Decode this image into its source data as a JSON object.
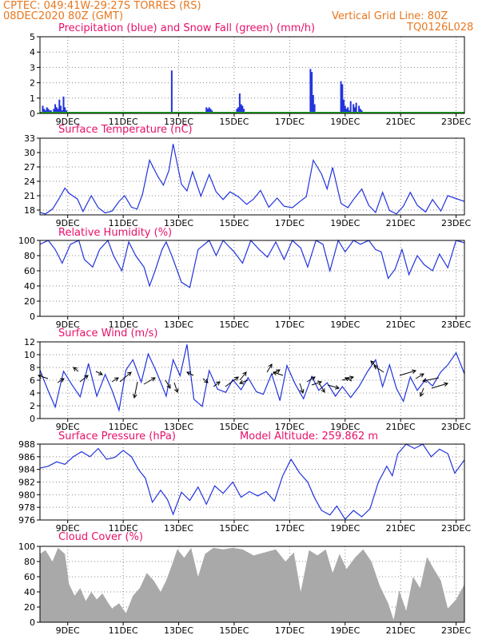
{
  "header": {
    "left_line1": "CPTEC:   049:41W-29:27S   TORRES (RS)",
    "left_line2": "08DEC2020 80Z (GMT)",
    "right_line1": "Vertical Grid Line: 80Z",
    "right_line2": "TQ0126L028"
  },
  "colors": {
    "header": "#e8771f",
    "title": "#e8106a",
    "line": "#2233dd",
    "snow": "#22aa22",
    "cloud": "#a9a9a9",
    "arrow": "#000000"
  },
  "x_ticks": [
    "9DEC",
    "11DEC",
    "13DEC",
    "15DEC",
    "17DEC",
    "19DEC",
    "21DEC",
    "23DEC"
  ],
  "chart_data": [
    {
      "type": "bar",
      "title": "Precipitation (blue) and Snow Fall (green) (mm/h)",
      "x_range": [
        8.0,
        23.3
      ],
      "ylim": [
        0,
        5
      ],
      "yticks": [
        0,
        1,
        2,
        3,
        4,
        5
      ],
      "series": [
        {
          "name": "Precipitation",
          "x": [
            8.1,
            8.15,
            8.2,
            8.25,
            8.3,
            8.35,
            8.4,
            8.5,
            8.55,
            8.6,
            8.65,
            8.7,
            8.75,
            8.8,
            8.85,
            8.9,
            8.95,
            9.0,
            12.75,
            14.0,
            14.05,
            14.1,
            14.15,
            14.2,
            14.3,
            15.1,
            15.15,
            15.2,
            15.25,
            15.3,
            15.35,
            17.75,
            17.8,
            17.85,
            17.9,
            18.85,
            18.9,
            18.95,
            19.0,
            19.05,
            19.1,
            19.15,
            19.2,
            19.3,
            19.35,
            19.4,
            19.5,
            19.55,
            19.6,
            19.7
          ],
          "values": [
            0.5,
            0.3,
            0.2,
            0.4,
            0.3,
            0.2,
            0.2,
            0.3,
            0.6,
            0.4,
            0.3,
            0.9,
            0.5,
            0.2,
            1.1,
            0.4,
            0.2,
            0.1,
            2.8,
            0.4,
            0.3,
            0.4,
            0.3,
            0.2,
            0.1,
            0.3,
            0.4,
            1.3,
            0.6,
            0.5,
            0.3,
            2.9,
            2.7,
            1.2,
            0.6,
            2.1,
            1.9,
            0.9,
            0.5,
            0.3,
            0.4,
            0.2,
            0.8,
            0.6,
            0.4,
            0.7,
            0.5,
            0.3,
            0.2,
            0.1
          ]
        },
        {
          "name": "Snow Fall",
          "x": [
            8.0,
            23.3
          ],
          "values": [
            0.05,
            0.05
          ]
        }
      ]
    },
    {
      "type": "line",
      "title": "Surface Temperature (nC)",
      "x_range": [
        8.0,
        23.3
      ],
      "ylim": [
        17,
        33
      ],
      "yticks": [
        18,
        21,
        24,
        27,
        30,
        33
      ],
      "series": [
        {
          "name": "Temperature",
          "x": [
            8.0,
            8.2,
            8.45,
            8.7,
            8.9,
            9.05,
            9.35,
            9.55,
            9.85,
            10.1,
            10.35,
            10.6,
            10.85,
            11.05,
            11.3,
            11.5,
            11.7,
            11.95,
            12.25,
            12.45,
            12.65,
            12.8,
            13.1,
            13.3,
            13.5,
            13.8,
            14.1,
            14.35,
            14.6,
            14.85,
            15.15,
            15.45,
            15.7,
            15.95,
            16.25,
            16.55,
            16.8,
            17.1,
            17.35,
            17.6,
            17.85,
            18.15,
            18.35,
            18.55,
            18.85,
            19.1,
            19.3,
            19.6,
            19.85,
            20.1,
            20.35,
            20.6,
            20.85,
            21.1,
            21.35,
            21.6,
            21.9,
            22.15,
            22.45,
            22.7,
            22.95,
            23.3
          ],
          "values": [
            17.5,
            17.2,
            18.2,
            20.5,
            22.6,
            21.5,
            20.3,
            17.7,
            21.0,
            18.5,
            17.4,
            17.8,
            19.8,
            21.0,
            18.6,
            18.2,
            21.4,
            28.4,
            25.0,
            23.2,
            26.3,
            31.8,
            23.4,
            22.0,
            26.0,
            20.9,
            25.4,
            21.8,
            20.2,
            21.8,
            20.8,
            19.2,
            20.3,
            22.1,
            18.6,
            20.5,
            18.8,
            18.5,
            19.7,
            20.8,
            28.4,
            25.5,
            22.4,
            26.9,
            19.4,
            18.5,
            20.2,
            22.4,
            19.0,
            17.5,
            21.7,
            17.9,
            17.2,
            18.8,
            21.7,
            19.0,
            17.6,
            20.2,
            17.8,
            21.0,
            20.5,
            19.8
          ]
        }
      ]
    },
    {
      "type": "line",
      "title": "Relative Humidity (%)",
      "x_range": [
        8.0,
        23.3
      ],
      "ylim": [
        0,
        100
      ],
      "yticks": [
        0,
        20,
        40,
        60,
        80,
        100
      ],
      "series": [
        {
          "name": "Relative Humidity",
          "x": [
            8.0,
            8.3,
            8.55,
            8.8,
            9.1,
            9.4,
            9.6,
            9.9,
            10.15,
            10.45,
            10.65,
            10.95,
            11.2,
            11.45,
            11.75,
            11.95,
            12.15,
            12.4,
            12.55,
            12.75,
            13.1,
            13.4,
            13.7,
            14.1,
            14.35,
            14.6,
            15.0,
            15.3,
            15.6,
            15.9,
            16.2,
            16.5,
            16.8,
            17.1,
            17.4,
            17.65,
            17.95,
            18.2,
            18.45,
            18.75,
            19.0,
            19.3,
            19.55,
            19.85,
            20.1,
            20.3,
            20.55,
            20.8,
            21.05,
            21.3,
            21.6,
            21.85,
            22.15,
            22.4,
            22.7,
            23.0,
            23.3
          ],
          "values": [
            95,
            100,
            88,
            70,
            95,
            100,
            75,
            65,
            88,
            100,
            80,
            60,
            98,
            80,
            65,
            40,
            60,
            88,
            98,
            80,
            45,
            38,
            88,
            100,
            80,
            100,
            85,
            70,
            100,
            88,
            78,
            98,
            75,
            100,
            90,
            65,
            100,
            95,
            60,
            100,
            85,
            100,
            95,
            100,
            88,
            85,
            50,
            62,
            88,
            55,
            80,
            68,
            60,
            82,
            64,
            100,
            97
          ]
        }
      ]
    },
    {
      "type": "line",
      "title": "Surface Wind (m/s)",
      "x_range": [
        8.0,
        23.3
      ],
      "ylim": [
        0,
        12
      ],
      "yticks": [
        0,
        2,
        4,
        6,
        8,
        10,
        12
      ],
      "series": [
        {
          "name": "Wind Speed",
          "x": [
            8.0,
            8.3,
            8.55,
            8.85,
            9.15,
            9.45,
            9.75,
            10.05,
            10.35,
            10.6,
            10.85,
            11.1,
            11.35,
            11.65,
            11.9,
            12.15,
            12.35,
            12.55,
            12.8,
            13.05,
            13.3,
            13.55,
            13.85,
            14.1,
            14.4,
            14.7,
            14.95,
            15.25,
            15.5,
            15.8,
            16.05,
            16.35,
            16.65,
            16.9,
            17.2,
            17.5,
            17.8,
            18.05,
            18.35,
            18.65,
            18.9,
            19.2,
            19.5,
            19.8,
            20.1,
            20.35,
            20.6,
            20.85,
            21.1,
            21.35,
            21.6,
            21.9,
            22.15,
            22.45,
            22.7,
            23.0,
            23.3
          ],
          "values": [
            7.6,
            4.3,
            1.8,
            7.4,
            5.3,
            3.4,
            8.6,
            3.5,
            6.9,
            4.4,
            1.3,
            7.6,
            9.2,
            5.7,
            10.1,
            7.8,
            5.7,
            3.5,
            9.2,
            6.7,
            11.6,
            3.0,
            1.9,
            7.5,
            4.6,
            4.1,
            6.1,
            4.5,
            6.4,
            4.2,
            3.8,
            7.0,
            2.8,
            8.3,
            5.4,
            3.1,
            6.6,
            4.4,
            5.6,
            3.5,
            5.0,
            3.3,
            5.0,
            7.3,
            9.2,
            5.0,
            8.4,
            4.7,
            2.7,
            6.5,
            4.4,
            6.1,
            5.1,
            7.3,
            8.4,
            10.3,
            7.0
          ]
        }
      ]
    },
    {
      "type": "line",
      "title": "Surface Pressure (hPa)",
      "annotation": "Model Altitude: 259.862 m",
      "x_range": [
        8.0,
        23.3
      ],
      "ylim": [
        976,
        988
      ],
      "yticks": [
        976,
        978,
        980,
        982,
        984,
        986,
        988
      ],
      "series": [
        {
          "name": "Surface Pressure",
          "x": [
            8.0,
            8.3,
            8.6,
            8.9,
            9.2,
            9.5,
            9.8,
            10.1,
            10.4,
            10.7,
            11.0,
            11.3,
            11.55,
            11.8,
            12.05,
            12.35,
            12.6,
            12.8,
            13.1,
            13.4,
            13.7,
            14.0,
            14.3,
            14.6,
            14.95,
            15.25,
            15.55,
            15.85,
            16.15,
            16.45,
            16.75,
            17.05,
            17.35,
            17.65,
            17.9,
            18.15,
            18.45,
            18.7,
            19.0,
            19.3,
            19.6,
            19.9,
            20.2,
            20.5,
            20.7,
            20.9,
            21.2,
            21.5,
            21.8,
            22.1,
            22.4,
            22.7,
            22.95,
            23.3
          ],
          "values": [
            984.2,
            984.5,
            985.2,
            984.8,
            986.0,
            986.8,
            986.0,
            987.3,
            985.6,
            985.9,
            987.0,
            986.0,
            984.0,
            982.6,
            978.8,
            980.7,
            979.2,
            976.9,
            980.4,
            979.1,
            981.2,
            978.5,
            981.4,
            980.2,
            982.0,
            979.6,
            980.5,
            979.8,
            980.5,
            979.0,
            983.0,
            985.6,
            983.5,
            982.0,
            979.5,
            977.5,
            976.8,
            978.2,
            976.1,
            977.5,
            976.5,
            977.8,
            982.0,
            984.5,
            983.0,
            986.5,
            988.0,
            987.3,
            988.0,
            986.0,
            987.2,
            986.5,
            983.4,
            985.5
          ]
        }
      ]
    },
    {
      "type": "area",
      "title": "Cloud Cover (%)",
      "x_range": [
        8.0,
        23.3
      ],
      "ylim": [
        0,
        100
      ],
      "yticks": [
        0,
        20,
        40,
        60,
        80,
        100
      ],
      "series": [
        {
          "name": "Cloud Cover",
          "x": [
            8.0,
            8.2,
            8.45,
            8.65,
            8.9,
            9.05,
            9.25,
            9.45,
            9.65,
            9.85,
            10.05,
            10.25,
            10.45,
            10.6,
            10.85,
            11.1,
            11.35,
            11.6,
            11.85,
            12.1,
            12.35,
            12.55,
            12.75,
            12.95,
            13.2,
            13.45,
            13.7,
            13.95,
            14.25,
            14.6,
            14.95,
            15.3,
            15.7,
            16.1,
            16.5,
            16.85,
            17.15,
            17.4,
            17.7,
            18.0,
            18.3,
            18.55,
            18.8,
            19.05,
            19.35,
            19.65,
            19.95,
            20.25,
            20.55,
            20.75,
            20.95,
            21.2,
            21.45,
            21.7,
            21.95,
            22.2,
            22.45,
            22.7,
            23.0,
            23.3
          ],
          "values": [
            90,
            95,
            80,
            98,
            90,
            50,
            35,
            45,
            28,
            40,
            30,
            38,
            26,
            18,
            25,
            12,
            35,
            45,
            65,
            55,
            40,
            55,
            75,
            96,
            85,
            98,
            60,
            90,
            98,
            96,
            98,
            96,
            88,
            92,
            96,
            80,
            92,
            40,
            95,
            88,
            96,
            65,
            90,
            70,
            85,
            96,
            80,
            48,
            25,
            3,
            42,
            15,
            60,
            45,
            86,
            70,
            55,
            18,
            30,
            50
          ]
        }
      ]
    }
  ]
}
